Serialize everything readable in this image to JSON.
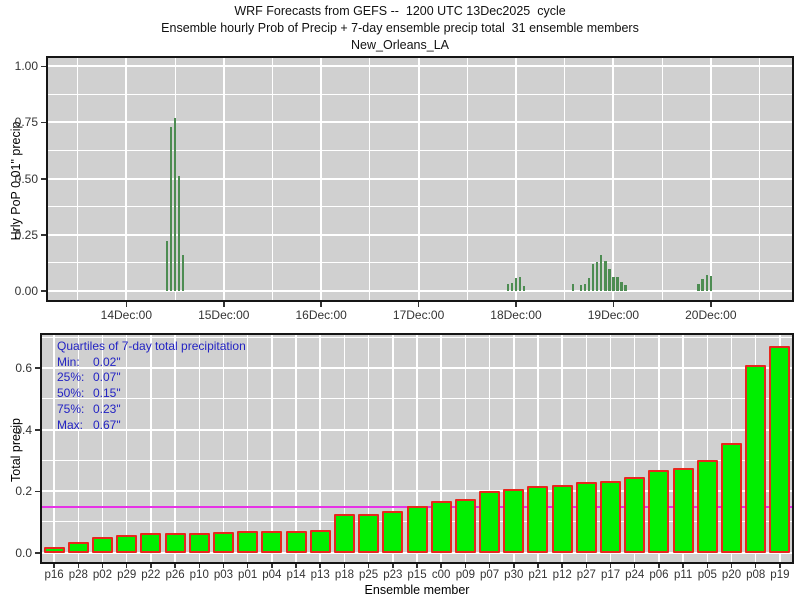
{
  "header": {
    "line1": "WRF Forecasts from GEFS --  1200 UTC 13Dec2025  cycle",
    "line2": "Ensemble hourly Prob of Precip + 7-day ensemble precip total  31 ensemble members",
    "line3": "New_Orleans_LA"
  },
  "colors": {
    "panel_bg": "#d0d0d0",
    "gridline": "#ffffff",
    "pop_bar_green": "#4d8c52",
    "precip_bar_fill": "#00ef00",
    "precip_bar_border": "#e8271c",
    "median_line_magenta": "#e632e6",
    "annotation_text_blue": "#2323c3",
    "tick_text": "#333333"
  },
  "chart_data": [
    {
      "type": "bar",
      "name": "hourly-probability-of-precip",
      "ylabel": "Hrly PoP 0.01\" precip",
      "yticks": [
        "0.00",
        "0.25",
        "0.50",
        "0.75",
        "1.00"
      ],
      "ytick_values": [
        0,
        0.25,
        0.5,
        0.75,
        1.0
      ],
      "ylim": [
        0,
        1.04
      ],
      "xticks": [
        "14Dec:00",
        "15Dec:00",
        "16Dec:00",
        "17Dec:00",
        "18Dec:00",
        "19Dec:00",
        "20Dec:00"
      ],
      "x_unit": "hours relative to 14Dec:00, range approx 13Dec:05 to 20Dec:20",
      "grid": "major and minor (12h / 0.125) white on gray",
      "bars_hour_value": [
        [
          10,
          0.22
        ],
        [
          11,
          0.73
        ],
        [
          12,
          0.77
        ],
        [
          13,
          0.51
        ],
        [
          14,
          0.16
        ],
        [
          94,
          0.031
        ],
        [
          95,
          0.034
        ],
        [
          96,
          0.055
        ],
        [
          97,
          0.06
        ],
        [
          98,
          0.022
        ],
        [
          110,
          0.03
        ],
        [
          112,
          0.027
        ],
        [
          113,
          0.029
        ],
        [
          114,
          0.055
        ],
        [
          115,
          0.12
        ],
        [
          116,
          0.13
        ],
        [
          117,
          0.16
        ],
        [
          118,
          0.132
        ],
        [
          119,
          0.097
        ],
        [
          120,
          0.062
        ],
        [
          121,
          0.06
        ],
        [
          122,
          0.04
        ],
        [
          123,
          0.027
        ],
        [
          141,
          0.03
        ],
        [
          142,
          0.05
        ],
        [
          143,
          0.07
        ],
        [
          144,
          0.065
        ]
      ]
    },
    {
      "type": "bar",
      "name": "ensemble-7day-total-precip",
      "xlabel": "Ensemble member",
      "ylabel": "Total precip",
      "yticks": [
        "0.0",
        "0.2",
        "0.4",
        "0.6"
      ],
      "ytick_values": [
        0,
        0.2,
        0.4,
        0.6
      ],
      "ylim": [
        0,
        0.71
      ],
      "categories": [
        "p16",
        "p28",
        "p02",
        "p29",
        "p22",
        "p26",
        "p10",
        "p03",
        "p01",
        "p04",
        "p14",
        "p13",
        "p18",
        "p25",
        "p23",
        "p15",
        "c00",
        "p09",
        "p07",
        "p30",
        "p21",
        "p12",
        "p27",
        "p17",
        "p24",
        "p06",
        "p11",
        "p05",
        "p20",
        "p08",
        "p19"
      ],
      "values": [
        0.02,
        0.036,
        0.05,
        0.058,
        0.063,
        0.065,
        0.065,
        0.067,
        0.07,
        0.071,
        0.072,
        0.074,
        0.125,
        0.126,
        0.135,
        0.152,
        0.168,
        0.175,
        0.2,
        0.206,
        0.215,
        0.219,
        0.23,
        0.233,
        0.245,
        0.27,
        0.275,
        0.3,
        0.355,
        0.61,
        0.67
      ],
      "median_line_value": 0.15,
      "annotation": {
        "title": "Quartiles of 7-day total precipitation",
        "rows": [
          [
            "Min:",
            "0.02\""
          ],
          [
            "25%:",
            "0.07\""
          ],
          [
            "50%:",
            "0.15\""
          ],
          [
            "75%:",
            "0.23\""
          ],
          [
            "Max:",
            "0.67\""
          ]
        ]
      }
    }
  ]
}
